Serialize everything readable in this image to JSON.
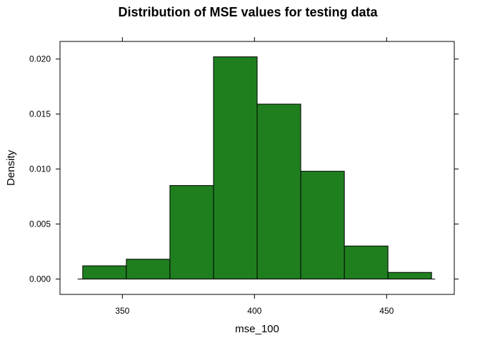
{
  "chart_data": {
    "type": "bar",
    "subtype": "histogram",
    "title": "Distribution of MSE values for testing data",
    "xlabel": "mse_100",
    "ylabel": "Density",
    "bar_color": "#1F7F1F",
    "bins": [
      {
        "x0": 335,
        "x1": 351.5,
        "density": 0.0012
      },
      {
        "x0": 351.5,
        "x1": 368,
        "density": 0.0018
      },
      {
        "x0": 368,
        "x1": 384.5,
        "density": 0.0085
      },
      {
        "x0": 384.5,
        "x1": 401,
        "density": 0.0202
      },
      {
        "x0": 401,
        "x1": 417.5,
        "density": 0.0159
      },
      {
        "x0": 417.5,
        "x1": 434,
        "density": 0.0098
      },
      {
        "x0": 434,
        "x1": 450.5,
        "density": 0.003
      },
      {
        "x0": 450.5,
        "x1": 467,
        "density": 0.0006
      }
    ],
    "xlim": [
      326.4,
      475.6
    ],
    "ylim": [
      -0.0014,
      0.0216
    ],
    "xticks": [
      350,
      400,
      450
    ],
    "xtick_labels": [
      "350",
      "400",
      "450"
    ],
    "yticks": [
      0.0,
      0.005,
      0.01,
      0.015,
      0.02
    ],
    "ytick_labels": [
      "0.000",
      "0.005",
      "0.010",
      "0.015",
      "0.020"
    ],
    "grid": false,
    "legend": "none"
  }
}
